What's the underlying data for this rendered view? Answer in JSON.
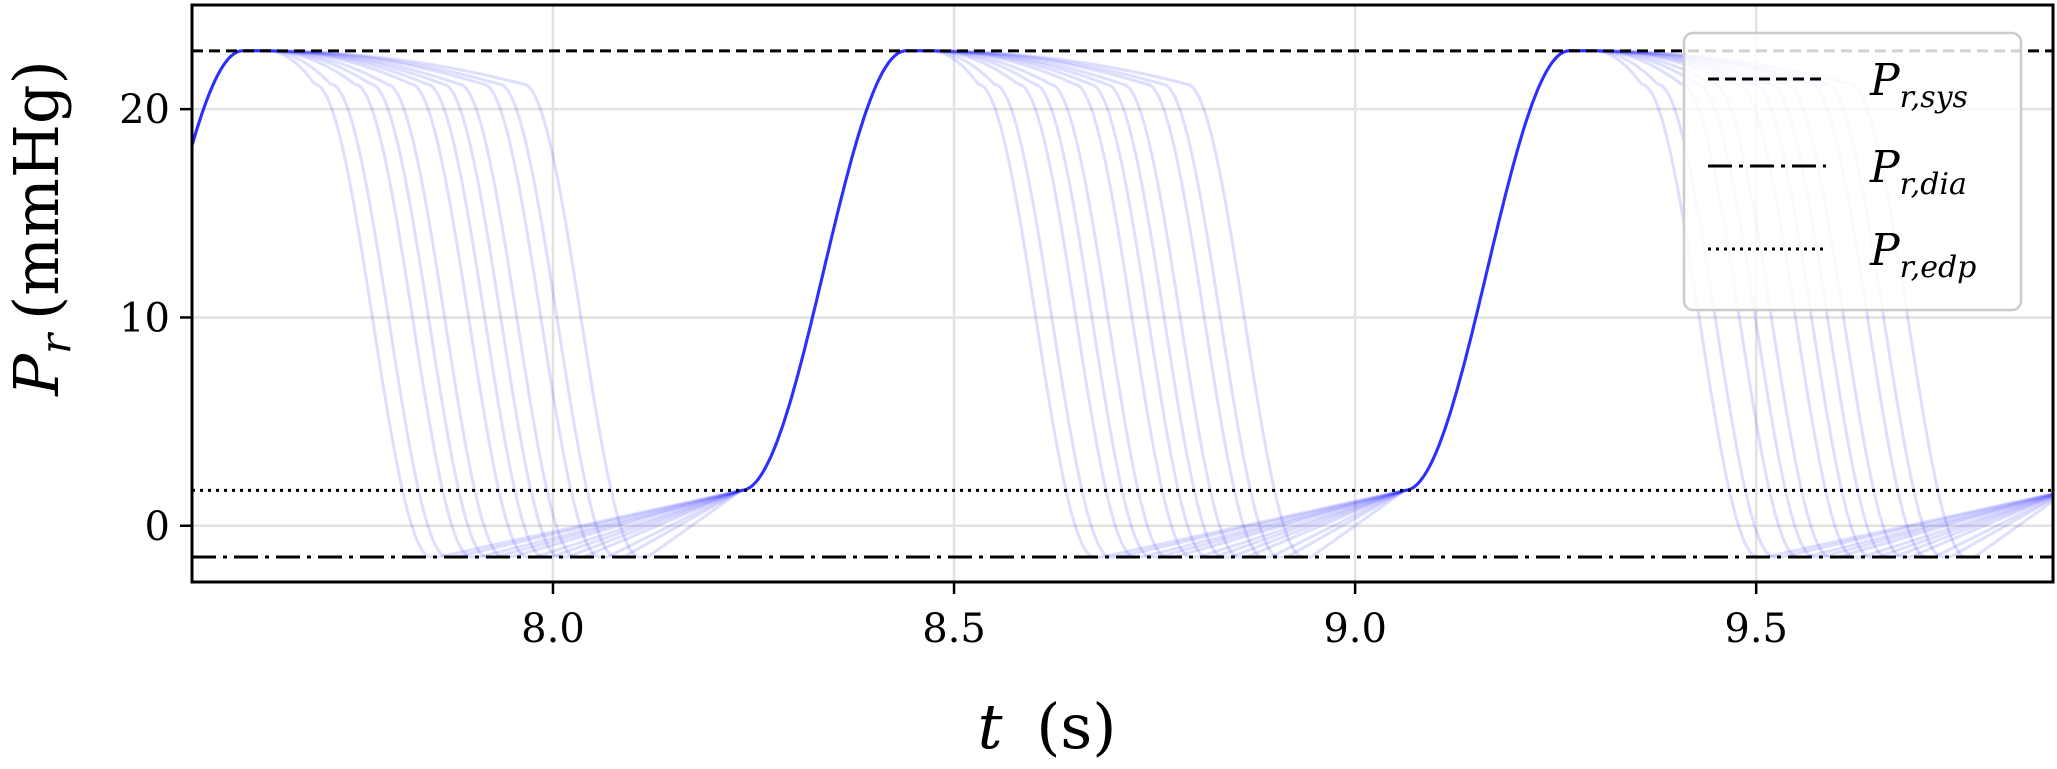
{
  "chart_data": {
    "type": "line",
    "xlabel": {
      "symbol": "t",
      "unit": "(s)"
    },
    "ylabel": {
      "symbol": "P",
      "sub": "r",
      "unit": "(mmHg)"
    },
    "xlim": [
      7.55,
      9.87
    ],
    "ylim": [
      -2.7,
      25.0
    ],
    "xticks": [
      8.0,
      8.5,
      9.0,
      9.5
    ],
    "xtick_labels": [
      "8.0",
      "8.5",
      "9.0",
      "9.5"
    ],
    "yticks": [
      0,
      10,
      20
    ],
    "ytick_labels": [
      "0",
      "10",
      "20"
    ],
    "grid": true,
    "reference_lines": [
      {
        "name": "P_r,sys",
        "value": 22.8,
        "style": "dashed"
      },
      {
        "name": "P_r,dia",
        "value": -1.5,
        "style": "dashdot"
      },
      {
        "name": "P_r,edp",
        "value": 1.7,
        "style": "dotted"
      }
    ],
    "waveform": {
      "period": 0.827,
      "cycle_start": 8.235,
      "rise_duration": 0.205,
      "min_value": -1.5,
      "peak_value": 22.8,
      "edp_value": 1.7,
      "plateau_end_value": 21.2,
      "ensemble_fall_offsets": [
        0.0,
        0.02,
        0.05,
        0.07,
        0.09,
        0.12,
        0.14,
        0.16,
        0.18,
        0.21,
        0.23,
        0.26
      ],
      "color": "#0000ff",
      "opacity": 0.13
    },
    "series_color": "#0000ff"
  },
  "legend": {
    "position": "top-right",
    "entries": [
      {
        "base": "P",
        "sub": "r,sys",
        "style": "dashed"
      },
      {
        "base": "P",
        "sub": "r,dia",
        "style": "dashdot"
      },
      {
        "base": "P",
        "sub": "r,edp",
        "style": "dotted"
      }
    ]
  }
}
